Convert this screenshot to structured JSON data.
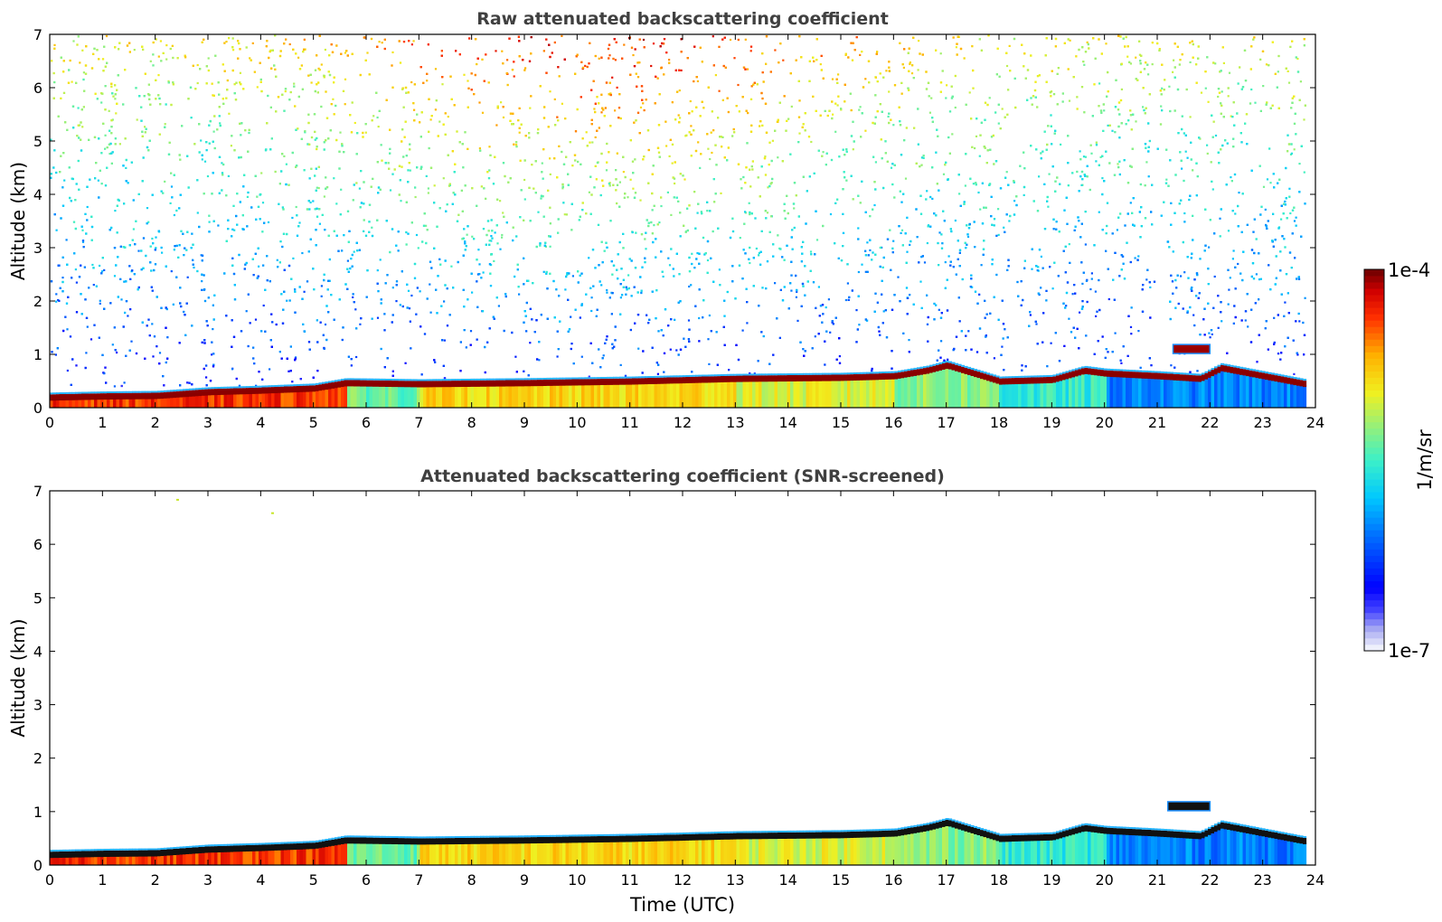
{
  "chart_data": [
    {
      "type": "heatmap",
      "title": "Raw attenuated backscattering coefficient",
      "xlabel": "",
      "ylabel": "Altitude (km)",
      "xlim": [
        0,
        24
      ],
      "ylim": [
        0,
        7
      ],
      "xticks": [
        "0",
        "1",
        "2",
        "3",
        "4",
        "5",
        "6",
        "7",
        "8",
        "9",
        "10",
        "11",
        "12",
        "13",
        "14",
        "15",
        "16",
        "17",
        "18",
        "19",
        "20",
        "21",
        "22",
        "23",
        "24"
      ],
      "yticks": [
        "0",
        "1",
        "2",
        "3",
        "4",
        "5",
        "6",
        "7"
      ],
      "data_end_hour": 23.8,
      "boundary_layer_top_km": [
        [
          0,
          0.25
        ],
        [
          1,
          0.27
        ],
        [
          2,
          0.28
        ],
        [
          3,
          0.35
        ],
        [
          4,
          0.38
        ],
        [
          5,
          0.42
        ],
        [
          5.6,
          0.52
        ],
        [
          7,
          0.5
        ],
        [
          9,
          0.52
        ],
        [
          11,
          0.55
        ],
        [
          13,
          0.6
        ],
        [
          15,
          0.62
        ],
        [
          16,
          0.65
        ],
        [
          16.6,
          0.75
        ],
        [
          17,
          0.85
        ],
        [
          17.5,
          0.7
        ],
        [
          18,
          0.55
        ],
        [
          19,
          0.58
        ],
        [
          19.6,
          0.75
        ],
        [
          20,
          0.7
        ],
        [
          21,
          0.65
        ],
        [
          21.8,
          0.6
        ],
        [
          22.2,
          0.8
        ],
        [
          23,
          0.65
        ],
        [
          23.8,
          0.5
        ]
      ],
      "elevated_cloud": {
        "start_hour": 21.3,
        "end_hour": 22.0,
        "altitude_km": 1.1
      },
      "noise_description": "speckled signal throughout profile"
    },
    {
      "type": "heatmap",
      "title": "Attenuated backscattering coefficient (SNR-screened)",
      "xlabel": "Time (UTC)",
      "ylabel": "Altitude (km)",
      "xlim": [
        0,
        24
      ],
      "ylim": [
        0,
        7
      ],
      "xticks": [
        "0",
        "1",
        "2",
        "3",
        "4",
        "5",
        "6",
        "7",
        "8",
        "9",
        "10",
        "11",
        "12",
        "13",
        "14",
        "15",
        "16",
        "17",
        "18",
        "19",
        "20",
        "21",
        "22",
        "23",
        "24"
      ],
      "yticks": [
        "0",
        "1",
        "2",
        "3",
        "4",
        "5",
        "6",
        "7"
      ],
      "data_end_hour": 23.8,
      "isolated_points": [
        [
          2.4,
          6.85
        ],
        [
          4.2,
          6.6
        ]
      ],
      "elevated_cloud": {
        "start_hour": 21.2,
        "end_hour": 22.0,
        "altitude_km": 1.1
      }
    }
  ],
  "colorbar": {
    "label": "1/m/sr",
    "max_label": "1e-4",
    "min_label": "1e-7",
    "scale": "log",
    "range": [
      1e-07,
      0.0001
    ],
    "colormap": "jet"
  }
}
